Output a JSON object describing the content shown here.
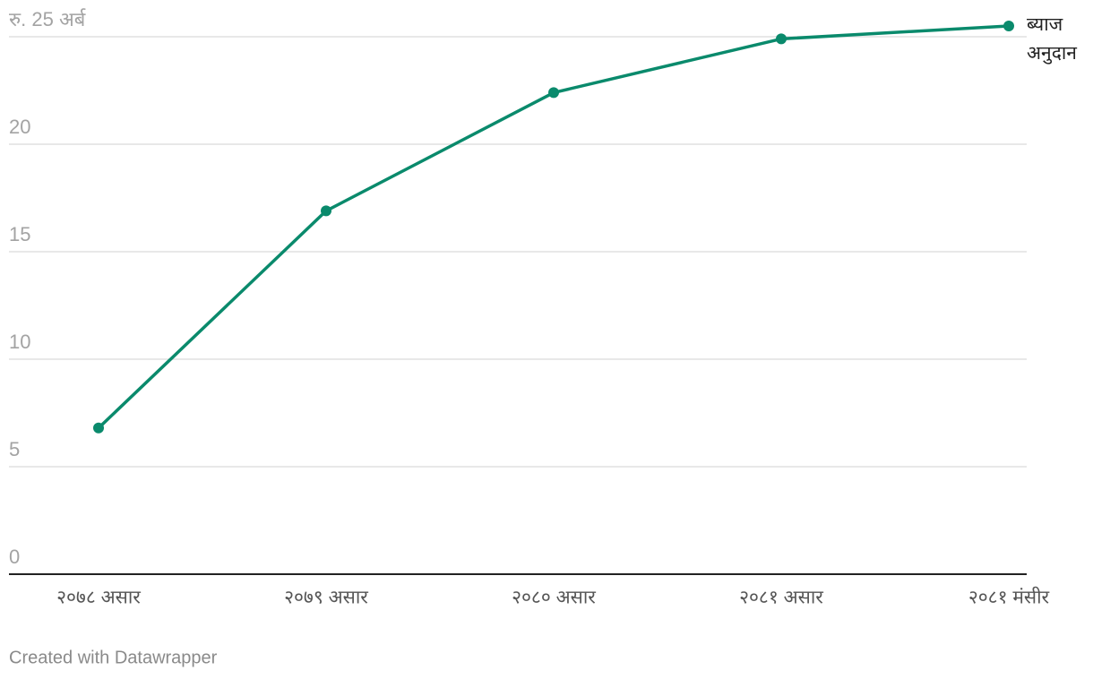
{
  "chart_data": {
    "type": "line",
    "categories": [
      "२०७८ असार",
      "२०७९ असार",
      "२०८० असार",
      "२०८१ असार",
      "२०८१ मंसीर"
    ],
    "series": [
      {
        "name": "ब्याज अनुदान",
        "color": "#0a8a6c",
        "values": [
          6.8,
          16.9,
          22.4,
          24.9,
          25.5
        ]
      }
    ],
    "ylim": [
      0,
      25
    ],
    "yticks": [
      0,
      5,
      10,
      15,
      20,
      {
        "value": 25,
        "label": "रु. 25 अर्ब"
      }
    ],
    "grid": true,
    "credit": "Created with Datawrapper"
  }
}
